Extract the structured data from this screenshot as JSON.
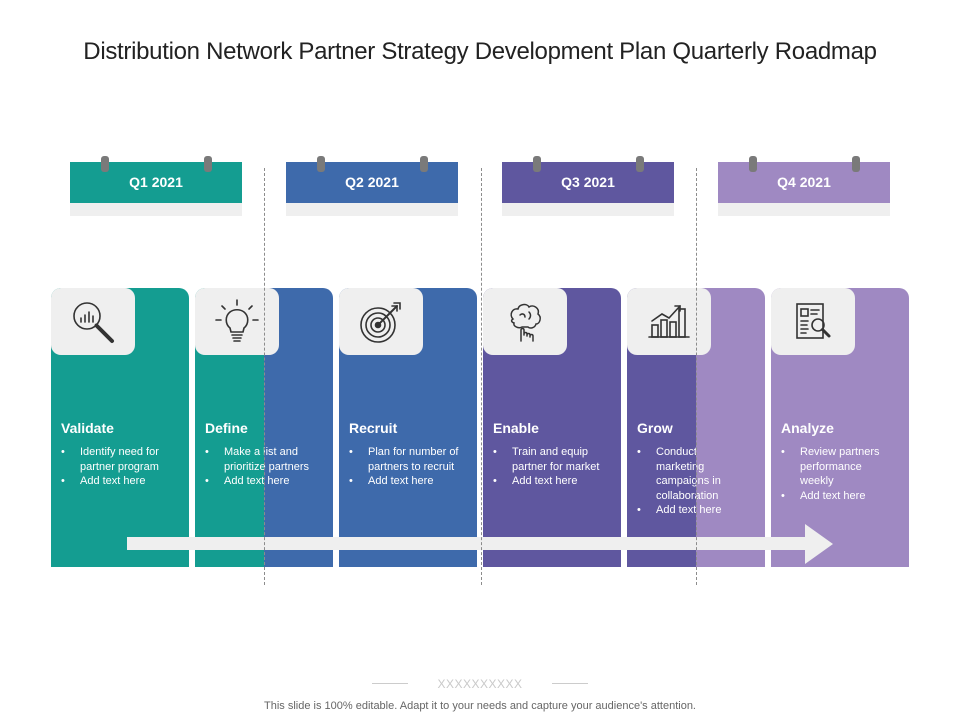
{
  "title": "Distribution Network Partner Strategy Development Plan Quarterly Roadmap",
  "colors": {
    "teal": "#149d91",
    "blue": "#3e6aab",
    "indigo": "#5f579f",
    "purple": "#9f89c2",
    "panel": "#efefef"
  },
  "quarters": [
    {
      "label": "Q1 2021"
    },
    {
      "label": "Q2 2021"
    },
    {
      "label": "Q3 2021"
    },
    {
      "label": "Q4 2021"
    }
  ],
  "steps": [
    {
      "title": "Validate",
      "icon": "magnifier-chart-icon",
      "bullets": [
        "Identify need for partner program",
        "Add text here"
      ]
    },
    {
      "title": "Define",
      "icon": "lightbulb-icon",
      "bullets": [
        "Make a list and prioritize partners",
        "Add text here"
      ]
    },
    {
      "title": "Recruit",
      "icon": "target-icon",
      "bullets": [
        "Plan for number of partners to recruit",
        "Add text here"
      ]
    },
    {
      "title": "Enable",
      "icon": "brain-hand-icon",
      "bullets": [
        "Train and equip partner for market",
        "Add text here"
      ]
    },
    {
      "title": "Grow",
      "icon": "growth-chart-icon",
      "bullets": [
        "Conduct marketing campaigns in collaboration",
        "Add text here"
      ]
    },
    {
      "title": "Analyze",
      "icon": "report-magnifier-icon",
      "bullets": [
        "Review partners performance weekly",
        "Add text here"
      ]
    }
  ],
  "footer": {
    "decoration": "XXXXXXXXXX",
    "text": "This slide is 100% editable. Adapt it to your needs and capture your audience's attention."
  }
}
